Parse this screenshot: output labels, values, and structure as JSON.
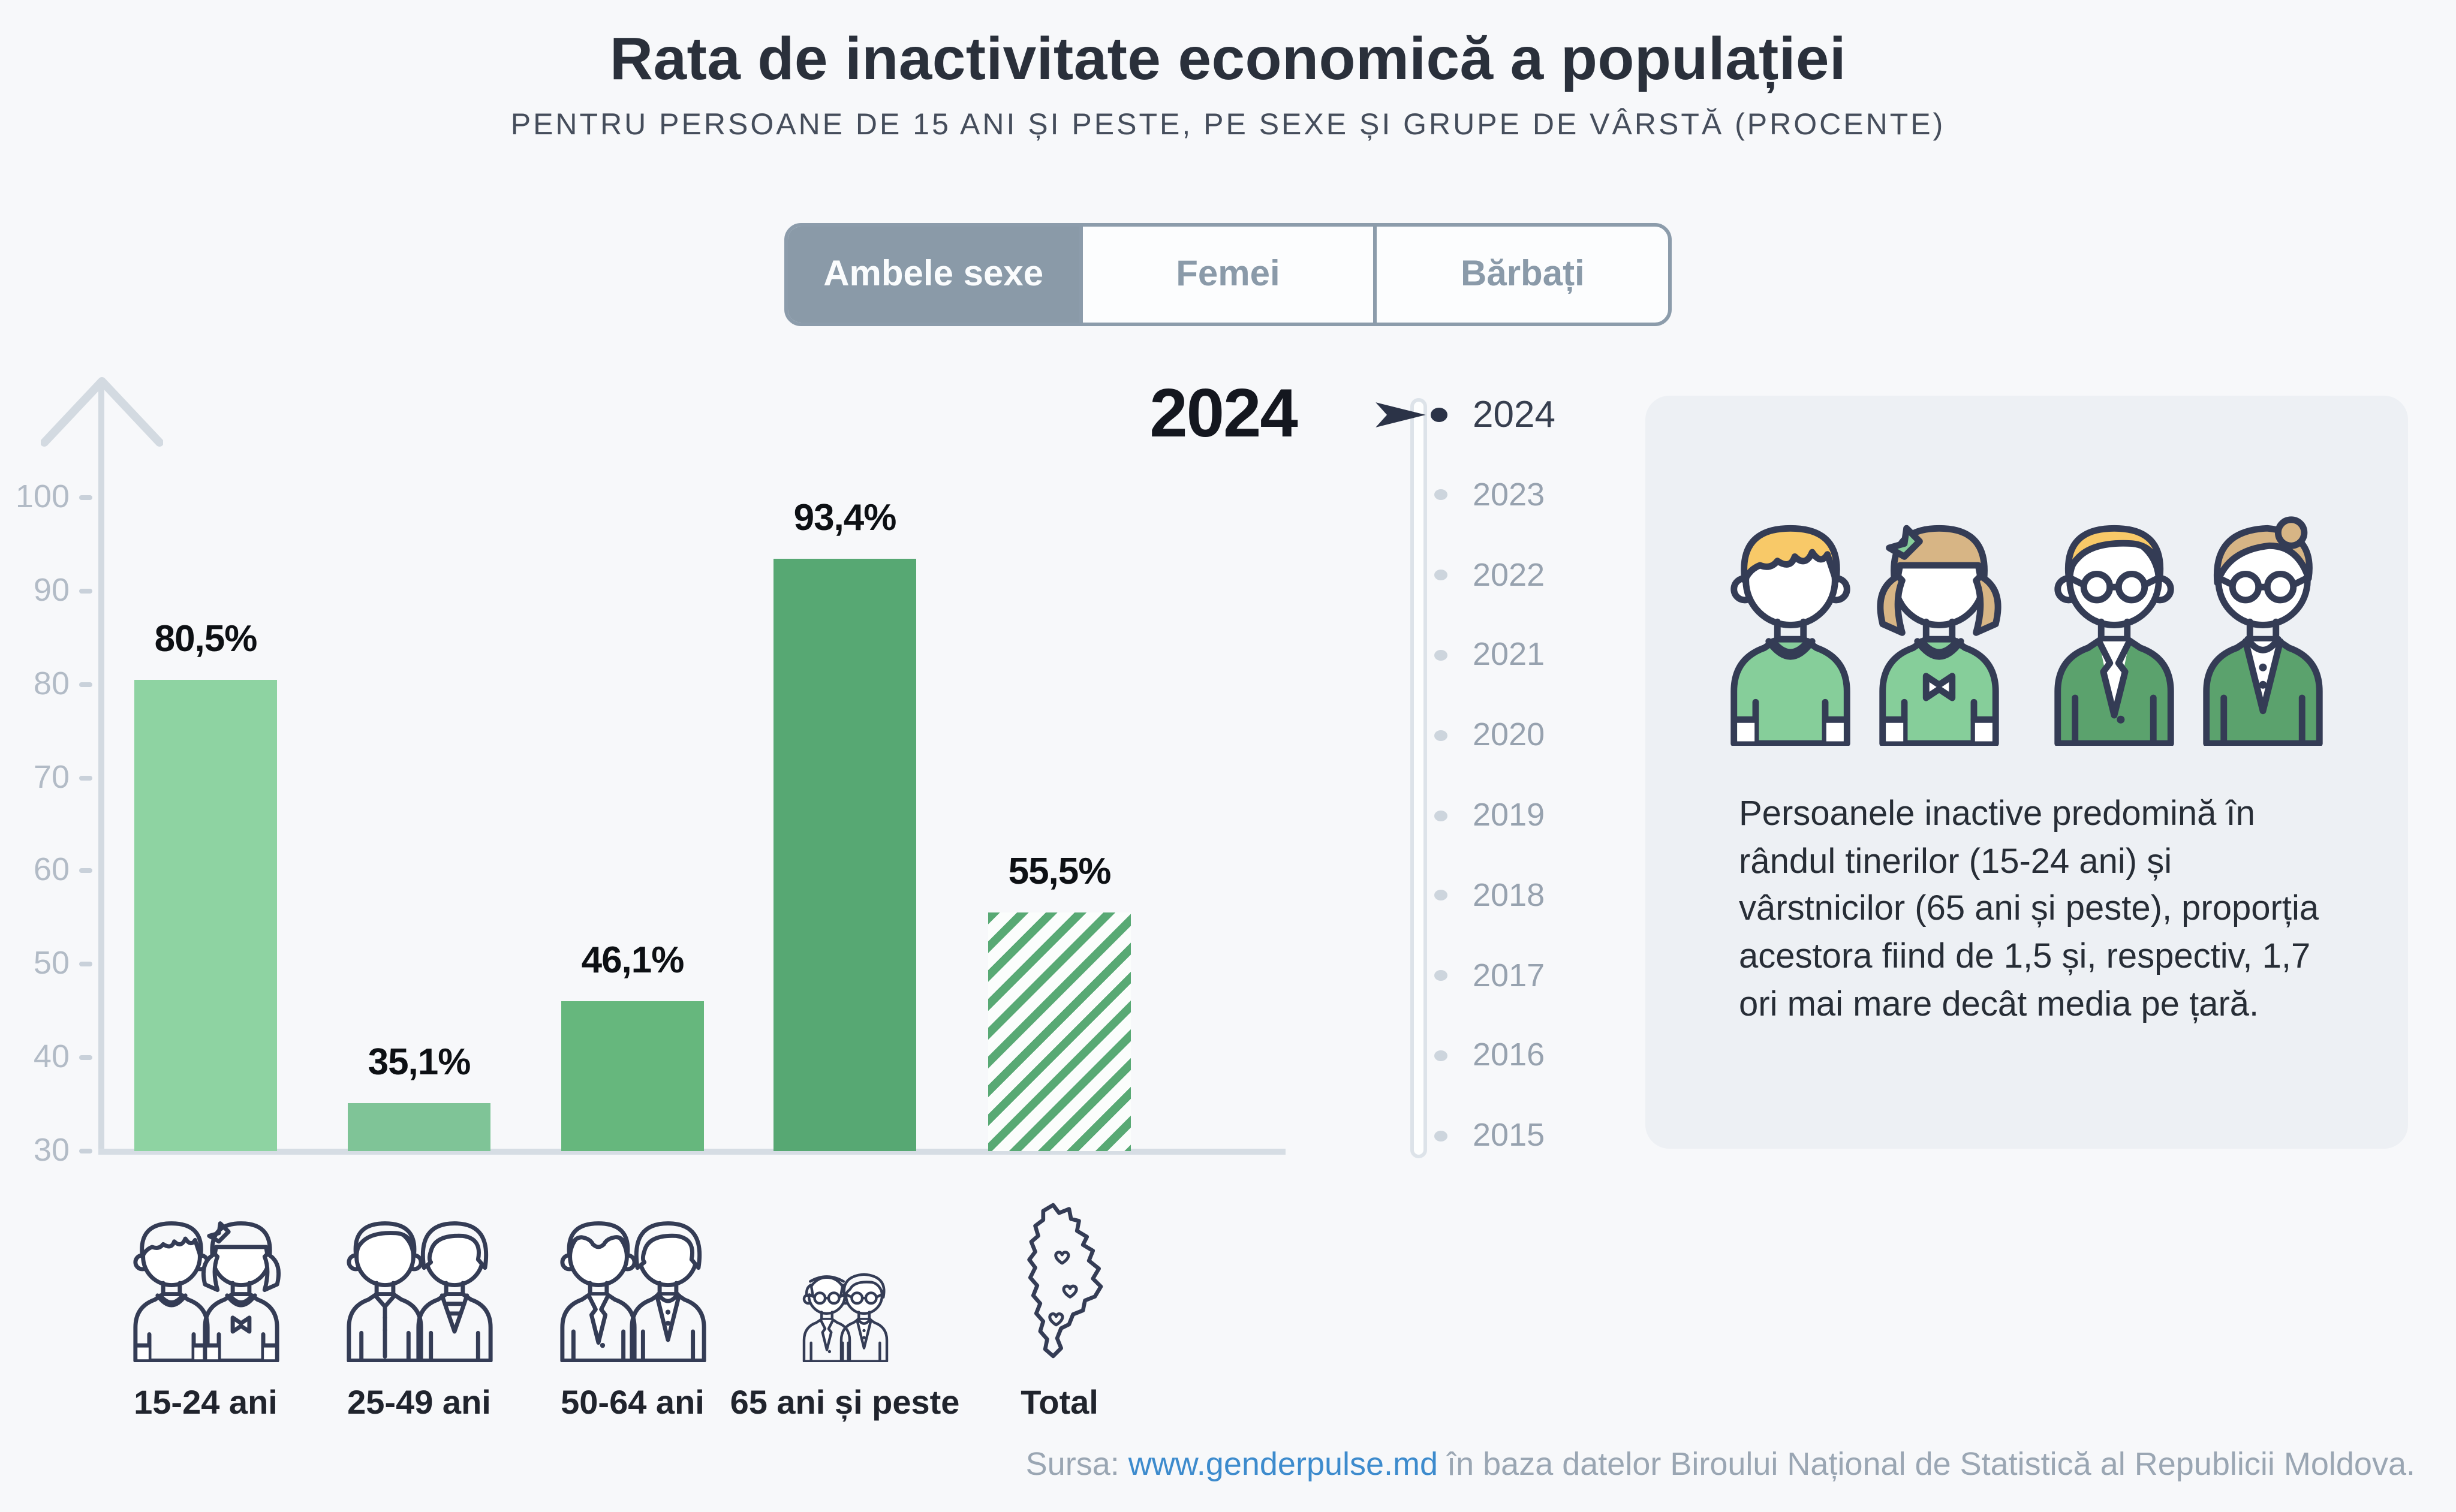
{
  "header": {
    "title": "Rata de inactivitate economică a populației",
    "subtitle": "PENTRU PERSOANE DE 15 ANI ȘI PESTE, PE SEXE ȘI GRUPE DE VÂRSTĂ (PROCENTE)"
  },
  "tabs": {
    "items": [
      {
        "label": "Ambele sexe",
        "selected": true
      },
      {
        "label": "Femei",
        "selected": false
      },
      {
        "label": "Bărbați",
        "selected": false
      }
    ]
  },
  "chart_data": {
    "type": "bar",
    "title": "Rata de inactivitate economică a populației",
    "selected_year": "2024",
    "categories": [
      "15-24 ani",
      "25-49 ani",
      "50-64 ani",
      "65 ani și peste",
      "Total"
    ],
    "values": [
      80.5,
      35.1,
      46.1,
      93.4,
      55.5
    ],
    "value_labels": [
      "80,5%",
      "35,1%",
      "46,1%",
      "93,4%",
      "55,5%"
    ],
    "bar_colors": [
      "#8ed3a2",
      "#7fc497",
      "#66b77d",
      "#57a873",
      "hatched"
    ],
    "hatch_color": "#58a974",
    "category_icons": [
      "boy-girl-icon",
      "man-woman-icon",
      "older-man-woman-icon",
      "elderly-couple-icon",
      "moldova-map-icon"
    ],
    "xlabel": "",
    "ylabel": "",
    "ylim": [
      30,
      100
    ],
    "yticks": [
      30,
      40,
      50,
      60,
      70,
      80,
      90,
      100
    ],
    "grid": false,
    "legend": "none"
  },
  "timeline": {
    "years": [
      "2024",
      "2023",
      "2022",
      "2021",
      "2020",
      "2019",
      "2018",
      "2017",
      "2016",
      "2015"
    ],
    "selected": "2024"
  },
  "infobox": {
    "icons": [
      "boy-icon",
      "girl-icon",
      "man-glasses-icon",
      "woman-glasses-icon"
    ],
    "text": "Persoanele inactive predomină în rândul tinerilor (15-24 ani) și vârstnicilor (65 ani și peste), proporția acestora fiind de 1,5 și, respectiv, 1,7 ori mai mare decât media pe țară."
  },
  "footer": {
    "source_prefix": "Sursa:",
    "source_link": "www.genderpulse.md",
    "source_suffix": "în baza datelor Biroului Național de Statistică al Republicii Moldova."
  },
  "colors": {
    "background": "#f7f8fa",
    "tab_selected_bg": "#8a9aa8",
    "tab_border": "#8c9cab",
    "axis": "#d3dae1",
    "axis_label": "#b2bbc6",
    "text_dark": "#14171f",
    "timeline_inactive": "#97a2af",
    "timeline_active": "#373f4f",
    "card_bg": "#edf0f4",
    "link": "#3d8bcd",
    "icon_stroke": "#343c55",
    "icon_green_light": "#86ce9a",
    "icon_green_dark": "#5ba26d",
    "icon_hair_yellow": "#f8c968",
    "icon_hair_tan": "#d7b585"
  }
}
